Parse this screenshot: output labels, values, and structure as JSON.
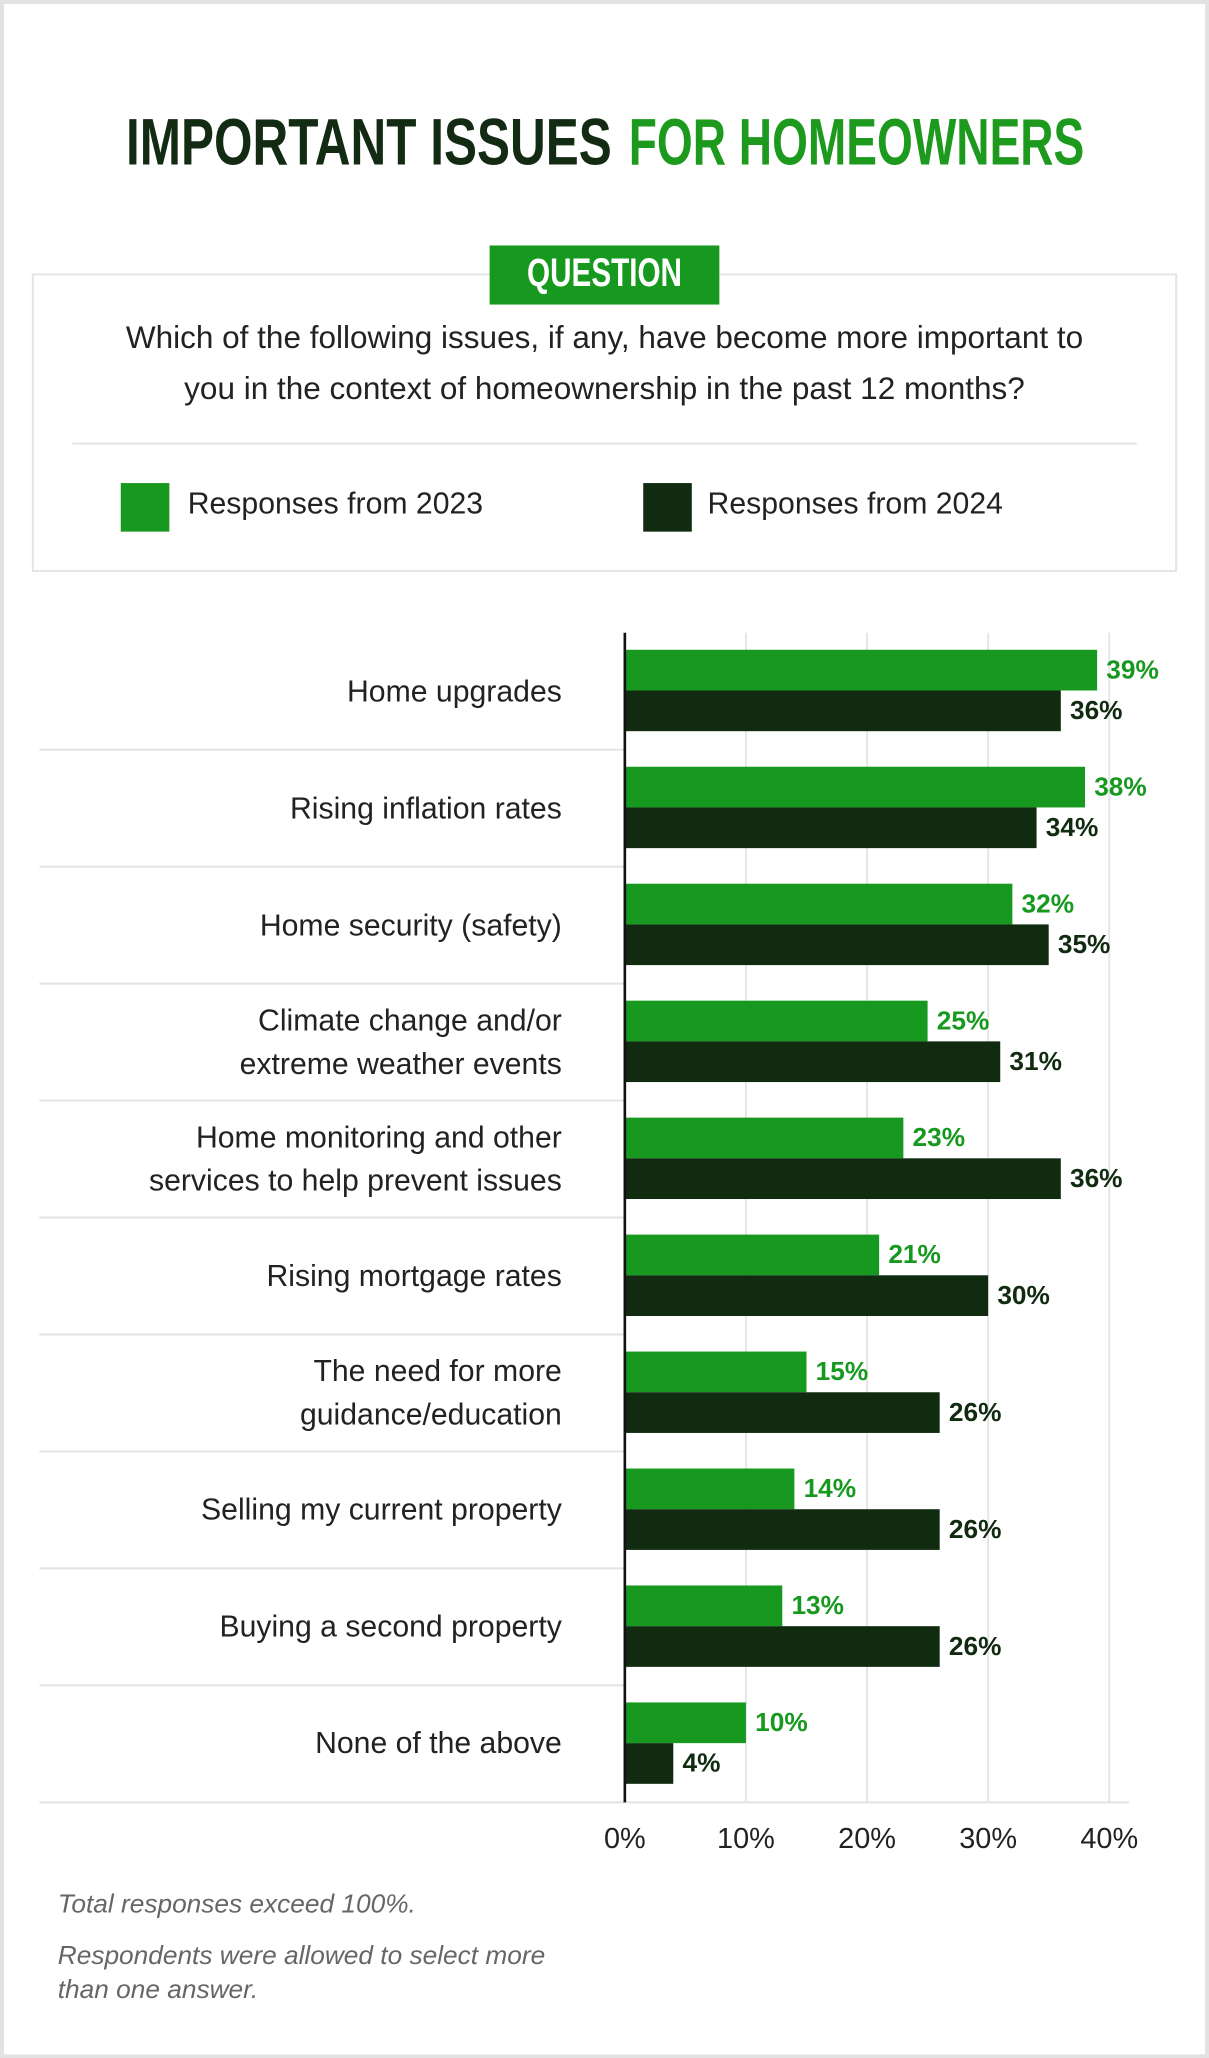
{
  "chart_data": {
    "type": "bar",
    "orientation": "horizontal",
    "title": "IMPORTANT ISSUES",
    "title_highlight": "FOR HOMEOWNERS",
    "question_label": "QUESTION",
    "question": "Which of the following issues, if any, have become more important to\nyou in the context of homeownership in the past 12 months?",
    "categories": [
      "Home upgrades",
      "Rising inflation rates",
      "Home security (safety)",
      "Climate change and/or\nextreme weather events",
      "Home monitoring and other\nservices to help prevent issues",
      "Rising mortgage rates",
      "The need for more\nguidance/education",
      "Selling my current property",
      "Buying a second property",
      "None of the above"
    ],
    "series": [
      {
        "name": "Responses from 2023",
        "color": "#17991f",
        "values": [
          39,
          38,
          32,
          25,
          23,
          21,
          15,
          14,
          13,
          10
        ],
        "value_labels": [
          "39%",
          "38%",
          "32%",
          "25%",
          "23%",
          "21%",
          "15%",
          "14%",
          "13%",
          "10%"
        ]
      },
      {
        "name": "Responses from 2024",
        "color": "#102b10",
        "values": [
          36,
          34,
          35,
          31,
          36,
          30,
          26,
          26,
          26,
          4
        ],
        "value_labels": [
          "36%",
          "34%",
          "35%",
          "31%",
          "36%",
          "30%",
          "26%",
          "26%",
          "26%",
          "4%"
        ]
      }
    ],
    "xlim": [
      0,
      40
    ],
    "xticks": [
      {
        "value": 0,
        "label": "0%"
      },
      {
        "value": 10,
        "label": "10%"
      },
      {
        "value": 20,
        "label": "20%"
      },
      {
        "value": 30,
        "label": "30%"
      },
      {
        "value": 40,
        "label": "40%"
      }
    ],
    "grid": true,
    "footnotes": [
      "Total responses exceed 100%.",
      "Respondents were allowed to select more\nthan one answer."
    ]
  }
}
